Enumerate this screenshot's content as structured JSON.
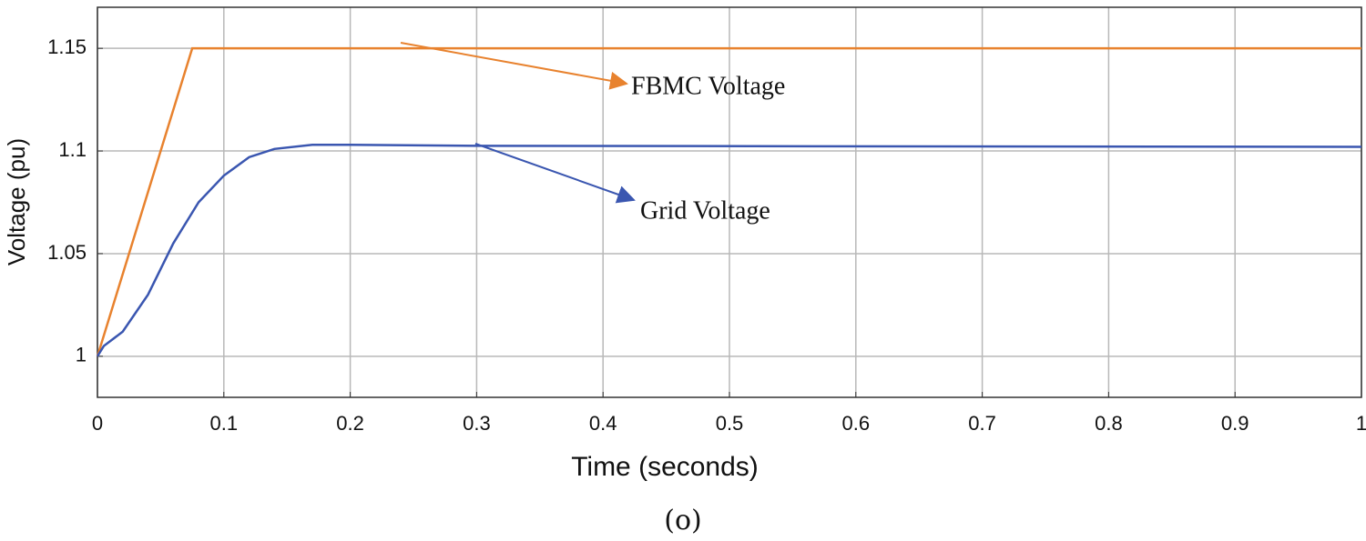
{
  "chart_data": {
    "type": "line",
    "caption": "(o)",
    "xlabel": "Time (seconds)",
    "ylabel": "Voltage (pu)",
    "xlim": [
      0,
      1
    ],
    "xticks": [
      0,
      0.1,
      0.2,
      0.3,
      0.4,
      0.5,
      0.6,
      0.7,
      0.8,
      0.9,
      1
    ],
    "ylim": [
      0.98,
      1.17
    ],
    "yticks": [
      1,
      1.05,
      1.1,
      1.15
    ],
    "grid": true,
    "series": [
      {
        "name": "FBMC Voltage",
        "color": "#e8822e",
        "x": [
          0,
          0.075,
          1
        ],
        "values": [
          1,
          1.15,
          1.15
        ]
      },
      {
        "name": "Grid Voltage",
        "color": "#3a56b0",
        "x": [
          0,
          0.005,
          0.02,
          0.04,
          0.06,
          0.08,
          0.1,
          0.12,
          0.14,
          0.17,
          0.2,
          0.3,
          1
        ],
        "values": [
          1,
          1.005,
          1.012,
          1.03,
          1.055,
          1.075,
          1.088,
          1.097,
          1.101,
          1.103,
          1.103,
          1.1025,
          1.102
        ]
      }
    ]
  }
}
